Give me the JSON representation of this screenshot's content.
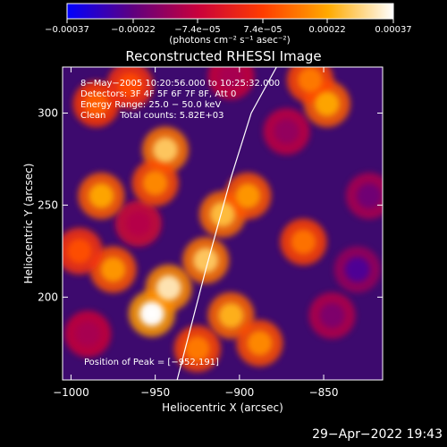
{
  "chart_data": {
    "type": "heatmap",
    "title": "Reconstructed RHESSI Image",
    "xlabel": "Heliocentric X (arcsec)",
    "ylabel": "Heliocentric Y (arcsec)",
    "xlim": [
      -1005,
      -815
    ],
    "ylim": [
      155,
      325
    ],
    "x_ticks": [
      -1000,
      -950,
      -900,
      -850
    ],
    "x_tick_labels": [
      "−1000",
      "−950",
      "−900",
      "−850"
    ],
    "y_ticks": [
      200,
      250,
      300
    ],
    "y_tick_labels": [
      "200",
      "250",
      "300"
    ],
    "colorbar": {
      "range": [
        -0.00037,
        0.00037
      ],
      "ticks": [
        -0.00037,
        -0.00022,
        -7.4e-05,
        7.4e-05,
        0.00022,
        0.00037
      ],
      "tick_labels": [
        "−0.00037",
        "−0.00022",
        "−7.4e−05",
        "7.4e−05",
        "0.00022",
        "0.00037"
      ],
      "units_label": "(photons cm⁻² s⁻¹ asec⁻²)",
      "colormap": [
        "#0000ff",
        "#5e0080",
        "#c8003c",
        "#ff3c00",
        "#ffaa00",
        "#ffffff"
      ]
    },
    "annotations": [
      "8−May−2005 10:20:56.000 to 10:25:32.000",
      "Detectors: 3F 4F 5F 6F 7F 8F, Att 0",
      "Energy Range: 25.0 − 50.0 keV",
      "Clean     Total counts: 5.82E+03"
    ],
    "peak_label": "Position of Peak = [−952,191]",
    "peak": [
      -952,
      191
    ],
    "limb_curve": [
      [
        -937,
        155
      ],
      [
        -920,
        215
      ],
      [
        -905,
        265
      ],
      [
        -893,
        300
      ],
      [
        -878,
        325
      ]
    ],
    "bright_regions": [
      {
        "x": -944,
        "y": 280,
        "intensity": 0.00028
      },
      {
        "x": -950,
        "y": 262,
        "intensity": 0.00018
      },
      {
        "x": -982,
        "y": 255,
        "intensity": 0.00022
      },
      {
        "x": -975,
        "y": 215,
        "intensity": 0.0002
      },
      {
        "x": -952,
        "y": 191,
        "intensity": 0.00037
      },
      {
        "x": -942,
        "y": 205,
        "intensity": 0.00033
      },
      {
        "x": -920,
        "y": 220,
        "intensity": 0.00028
      },
      {
        "x": -910,
        "y": 245,
        "intensity": 0.00026
      },
      {
        "x": -895,
        "y": 255,
        "intensity": 0.0002
      },
      {
        "x": -905,
        "y": 190,
        "intensity": 0.00024
      },
      {
        "x": -888,
        "y": 175,
        "intensity": 0.00018
      },
      {
        "x": -925,
        "y": 172,
        "intensity": 0.00016
      },
      {
        "x": -848,
        "y": 305,
        "intensity": 0.00022
      },
      {
        "x": -858,
        "y": 318,
        "intensity": 0.00016
      },
      {
        "x": -862,
        "y": 230,
        "intensity": 0.00015
      },
      {
        "x": -985,
        "y": 305,
        "intensity": 0.00012
      },
      {
        "x": -965,
        "y": 315,
        "intensity": 9e-05
      },
      {
        "x": -995,
        "y": 225,
        "intensity": 0.0001
      }
    ],
    "dark_regions": [
      {
        "x": -830,
        "y": 215,
        "intensity": -0.00025
      },
      {
        "x": -823,
        "y": 255,
        "intensity": -0.0002
      },
      {
        "x": -845,
        "y": 190,
        "intensity": -0.00018
      },
      {
        "x": -872,
        "y": 290,
        "intensity": -0.00015
      },
      {
        "x": -990,
        "y": 180,
        "intensity": -0.00012
      },
      {
        "x": -905,
        "y": 320,
        "intensity": -0.00012
      },
      {
        "x": -960,
        "y": 240,
        "intensity": -0.0001
      }
    ]
  },
  "footer": {
    "timestamp": "29−Apr−2022 19:43"
  }
}
